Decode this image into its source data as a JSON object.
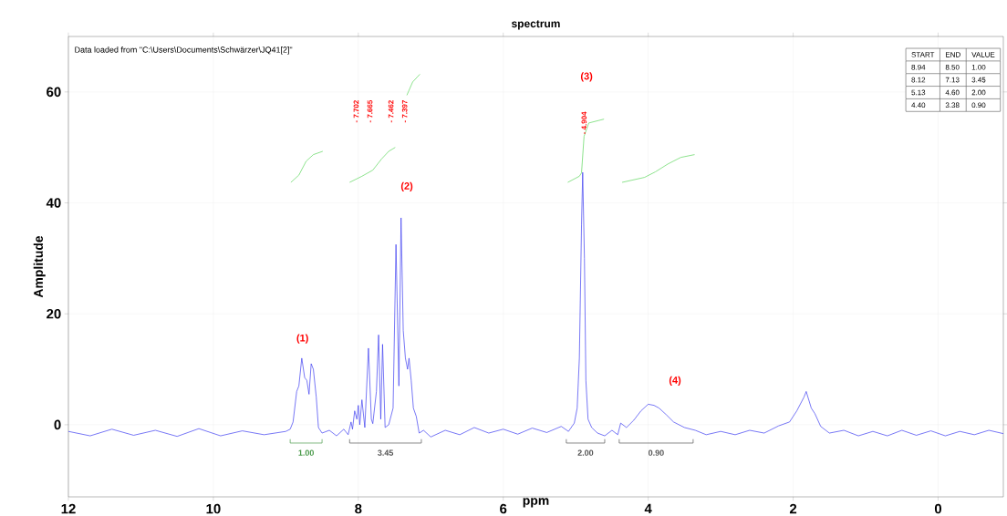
{
  "chart_data": {
    "type": "line",
    "title": "spectrum",
    "xlabel": "ppm",
    "ylabel": "Amplitude",
    "xlim": [
      12,
      -0.9
    ],
    "ylim": [
      -13,
      70
    ],
    "xticks": [
      12,
      10,
      8,
      6,
      4,
      2,
      0
    ],
    "yticks": [
      0,
      20,
      40,
      60
    ],
    "grid": true,
    "line_style": "solid",
    "series": [
      {
        "color": "#3c3cf0",
        "x": [
          12,
          11.7,
          11.4,
          11.1,
          10.8,
          10.5,
          10.2,
          9.9,
          9.6,
          9.3,
          9.0,
          8.94,
          8.9,
          8.85,
          8.82,
          8.78,
          8.74,
          8.71,
          8.68,
          8.65,
          8.62,
          8.58,
          8.55,
          8.5,
          8.4,
          8.3,
          8.2,
          8.14,
          8.1,
          8.08,
          8.05,
          8.02,
          8.0,
          7.98,
          7.95,
          7.91,
          7.86,
          7.82,
          7.8,
          7.75,
          7.72,
          7.69,
          7.665,
          7.63,
          7.58,
          7.52,
          7.48,
          7.44,
          7.41,
          7.38,
          7.35,
          7.32,
          7.3,
          7.27,
          7.24,
          7.2,
          7.16,
          7.1,
          7.0,
          6.8,
          6.6,
          6.4,
          6.2,
          6.0,
          5.8,
          5.6,
          5.4,
          5.2,
          5.1,
          5.02,
          4.98,
          4.95,
          4.92,
          4.904,
          4.88,
          4.86,
          4.83,
          4.78,
          4.7,
          4.6,
          4.5,
          4.42,
          4.38,
          4.3,
          4.2,
          4.1,
          4.0,
          3.92,
          3.85,
          3.75,
          3.65,
          3.5,
          3.35,
          3.2,
          3.0,
          2.8,
          2.6,
          2.4,
          2.2,
          2.05,
          1.95,
          1.85,
          1.82,
          1.75,
          1.7,
          1.62,
          1.5,
          1.3,
          1.1,
          0.9,
          0.7,
          0.5,
          0.3,
          0.1,
          -0.1,
          -0.3,
          -0.5,
          -0.7,
          -0.9
        ],
        "values": [
          -1.2,
          -2,
          -0.8,
          -1.9,
          -1,
          -2.1,
          -0.7,
          -2,
          -1.1,
          -1.8,
          -1.2,
          -0.8,
          0.5,
          6,
          7,
          12,
          8.5,
          8,
          5.5,
          11,
          10,
          5,
          -0.5,
          -1.5,
          -1,
          -2,
          -0.8,
          -1.8,
          0.5,
          -0.8,
          2.5,
          1,
          3.5,
          0,
          4.5,
          -0.5,
          13.8,
          1,
          0.2,
          6,
          16.2,
          1,
          14.5,
          -0.5,
          0,
          3,
          32.5,
          7,
          37.3,
          17,
          12,
          10,
          12,
          8,
          3,
          1.5,
          -1.5,
          -1,
          -2.2,
          -1,
          -1.8,
          -0.5,
          -1.5,
          -0.8,
          -1.7,
          -0.6,
          -1.4,
          -0.3,
          -1.2,
          0.3,
          3,
          12,
          36,
          45.5,
          30,
          8,
          1,
          -0.5,
          -1.5,
          -2,
          -1,
          -1.8,
          0.3,
          -0.5,
          0.8,
          2.5,
          3.7,
          3.5,
          3,
          1.8,
          0.5,
          -0.5,
          -1,
          -1.8,
          -1.2,
          -1.8,
          -1,
          -1.5,
          -0.2,
          0.5,
          2.5,
          5,
          6,
          3,
          2,
          -0.3,
          -1.5,
          -1,
          -2,
          -1.2,
          -2,
          -1,
          -1.9,
          -1.1,
          -2,
          -1.2,
          -1.8,
          -1,
          -1.6
        ]
      },
      {
        "color": "#5cd65c",
        "x": [
          8.93,
          8.82,
          8.72,
          8.62,
          8.49
        ],
        "values": [
          43.7,
          45,
          47.5,
          48.7,
          49.3
        ]
      },
      {
        "color": "#5cd65c",
        "x": [
          8.12,
          7.95,
          7.8,
          7.68,
          7.58,
          7.49
        ],
        "values": [
          43.7,
          44.8,
          45.9,
          47.9,
          49.3,
          50
        ]
      },
      {
        "color": "#5cd65c",
        "x": [
          7.33,
          7.25,
          7.15
        ],
        "values": [
          59.4,
          61.8,
          63.2
        ]
      },
      {
        "color": "#5cd65c",
        "x": [
          5.11,
          4.95,
          4.92,
          4.885,
          4.82,
          4.61
        ],
        "values": [
          43.7,
          44.8,
          45.4,
          52,
          54.4,
          55.1
        ]
      },
      {
        "color": "#5cd65c",
        "x": [
          4.36,
          4.05,
          3.9,
          3.73,
          3.55,
          3.36
        ],
        "values": [
          43.7,
          44.6,
          45.6,
          47,
          48.2,
          48.7
        ]
      },
      {
        "color": "#4a9a4a",
        "x": [
          8.94,
          8.94,
          8.5,
          8.5
        ],
        "values": [
          -2.6,
          -3.3,
          -3.3,
          -2.6
        ]
      },
      {
        "color": "#555555",
        "x": [
          8.12,
          8.12,
          7.13,
          7.13
        ],
        "values": [
          -2.6,
          -3.3,
          -3.3,
          -2.6
        ]
      },
      {
        "color": "#555555",
        "x": [
          5.13,
          5.13,
          4.6,
          4.6
        ],
        "values": [
          -2.6,
          -3.3,
          -3.3,
          -2.6
        ]
      },
      {
        "color": "#555555",
        "x": [
          4.4,
          4.4,
          3.38,
          3.38
        ],
        "values": [
          -2.6,
          -3.3,
          -3.3,
          -2.6
        ]
      }
    ],
    "annotations": [
      {
        "text": "1.00",
        "x": 8.72,
        "y": -3.3
      },
      {
        "text": "3.45",
        "x": 7.625,
        "y": -3.3
      },
      {
        "text": "2.00",
        "x": 4.865,
        "y": -3.3
      },
      {
        "text": "0.90",
        "x": 3.89,
        "y": -3.3
      },
      "Data loaded from \"C:\\Users\\Documents\\Schwärzer\\JQ41[2]\"",
      "(1)",
      "(2)",
      "(3)",
      "(4)",
      "- 7.702",
      "- 7.665",
      "- 7.462",
      "- 7.397",
      "- 4.904",
      "START",
      "END",
      "VALUE",
      "8.94",
      "8.50",
      "1.00",
      "8.12",
      "7.13",
      "3.45",
      "5.13",
      "4.60",
      "2.00",
      "4.40",
      "3.38",
      "0.90"
    ]
  }
}
